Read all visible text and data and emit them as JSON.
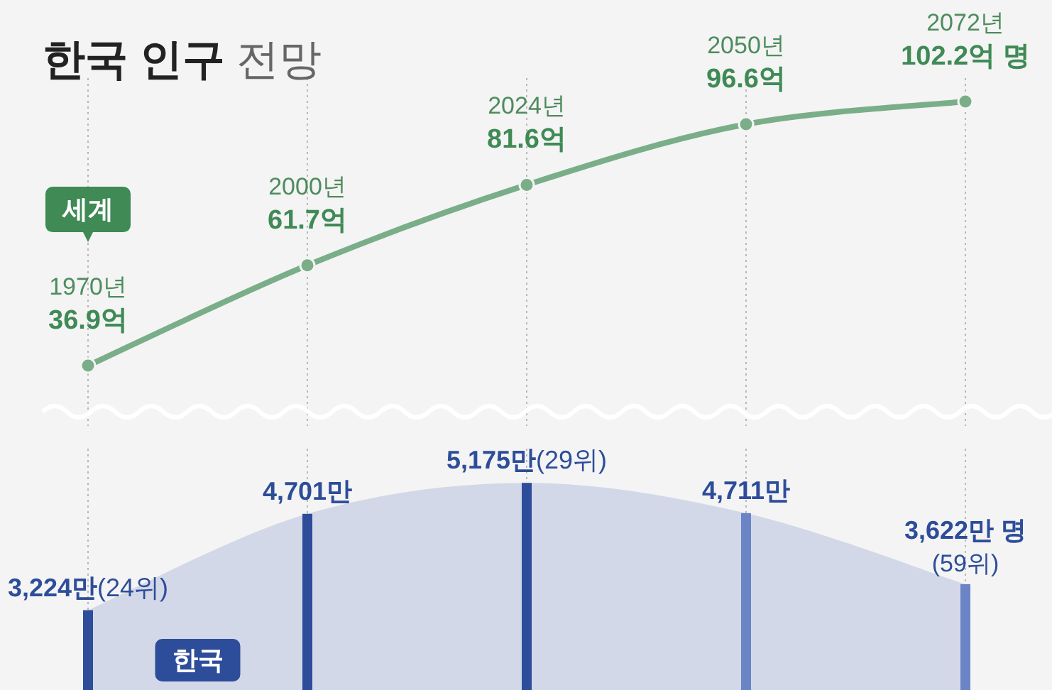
{
  "chart_data": [
    {
      "type": "line",
      "title": "한국 인구 전망",
      "categories": [
        null,
        null,
        null,
        null,
        null
      ],
      "ylim": [
        22,
        108
      ],
      "annotations": [
        "1970년",
        "2000년",
        "2024년",
        "2050년",
        "2072년"
      ],
      "grid": "x",
      "marker": "circle",
      "series": [
        {
          "name": "세계",
          "color": "#7aae88",
          "values": [
            36.9,
            61.7,
            81.6,
            96.6,
            102.2
          ],
          "value_labels": [
            "36.9억",
            "61.7억",
            "81.6억",
            "96.6억",
            "102.2억 명"
          ]
        }
      ]
    },
    {
      "type": "bar",
      "categories": [
        null,
        null,
        null,
        null,
        null
      ],
      "ylim": [
        2000,
        5700
      ],
      "grid": "x",
      "series": [
        {
          "type": "area",
          "color": "#d3d8e8",
          "values": [
            3224,
            4701,
            5175,
            4711,
            3622
          ]
        },
        {
          "name": "한국",
          "color": "#2d4d9a",
          "colors": [
            "#2d4d9a",
            "#2d4d9a",
            "#2d4d9a",
            "#6a84c6",
            "#6a84c6"
          ],
          "values": [
            3224,
            4701,
            5175,
            4711,
            3622
          ],
          "value_labels": [
            "3,224만(24위)",
            "4,701만",
            "5,175만(29위)",
            "4,711만",
            "3,622만 명(59위)"
          ]
        }
      ]
    }
  ]
}
